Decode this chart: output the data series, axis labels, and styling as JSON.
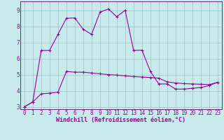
{
  "xlabel": "Windchill (Refroidissement éolien,°C)",
  "bg_color": "#c8eaec",
  "line_color": "#990099",
  "grid_color": "#a0c8cc",
  "spine_color": "#660066",
  "xlim": [
    -0.5,
    23.5
  ],
  "ylim": [
    2.85,
    9.55
  ],
  "yticks": [
    3,
    4,
    5,
    6,
    7,
    8,
    9
  ],
  "xticks": [
    0,
    1,
    2,
    3,
    4,
    5,
    6,
    7,
    8,
    9,
    10,
    11,
    12,
    13,
    14,
    15,
    16,
    17,
    18,
    19,
    20,
    21,
    22,
    23
  ],
  "series1_x": [
    0,
    1,
    2,
    3,
    4,
    5,
    6,
    7,
    8,
    9,
    10,
    11,
    12,
    13,
    14,
    15,
    16,
    17,
    18,
    19,
    20,
    21,
    22,
    23
  ],
  "series1_y": [
    3.0,
    3.3,
    3.8,
    3.85,
    3.9,
    5.2,
    5.15,
    5.15,
    5.1,
    5.05,
    5.0,
    4.97,
    4.92,
    4.88,
    4.85,
    4.82,
    4.78,
    4.55,
    4.48,
    4.44,
    4.42,
    4.4,
    4.38,
    4.52
  ],
  "series2_x": [
    0,
    1,
    2,
    3,
    4,
    5,
    6,
    7,
    8,
    9,
    10,
    11,
    12,
    13,
    14,
    15,
    16,
    17,
    18,
    19,
    20,
    21,
    22,
    23
  ],
  "series2_y": [
    3.0,
    3.3,
    6.5,
    6.5,
    7.5,
    8.5,
    8.52,
    7.82,
    7.5,
    8.88,
    9.08,
    8.6,
    9.0,
    6.5,
    6.52,
    5.2,
    4.42,
    4.42,
    4.1,
    4.1,
    4.15,
    4.2,
    4.32,
    4.52
  ],
  "tick_fontsize": 5.5,
  "label_fontsize": 6.0
}
